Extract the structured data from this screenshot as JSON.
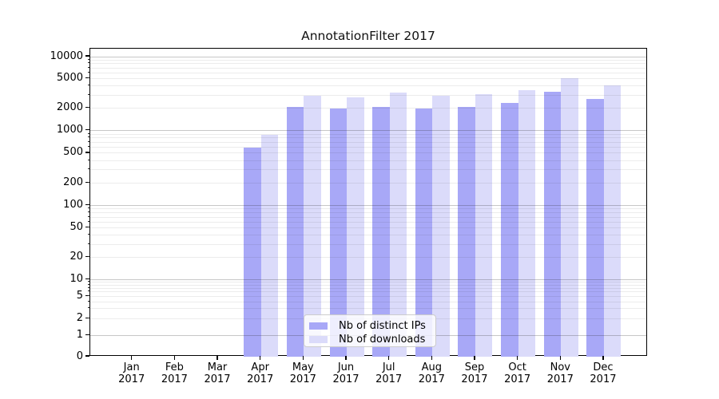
{
  "chart_data": {
    "type": "bar",
    "title": "AnnotationFilter 2017",
    "categories": [
      "Jan",
      "Feb",
      "Mar",
      "Apr",
      "May",
      "Jun",
      "Jul",
      "Aug",
      "Sep",
      "Oct",
      "Nov",
      "Dec"
    ],
    "year_label": "2017",
    "series": [
      {
        "name": "Nb of distinct IPs",
        "color": "#a8a8f7",
        "values": [
          0,
          0,
          0,
          600,
          2080,
          2010,
          2110,
          1980,
          2090,
          2390,
          3320,
          2660
        ]
      },
      {
        "name": "Nb of downloads",
        "color": "#dbdbfa",
        "values": [
          0,
          0,
          0,
          870,
          2930,
          2810,
          3240,
          2990,
          3080,
          3480,
          5170,
          4070
        ]
      }
    ],
    "yscale": "log_with_zero_baseline",
    "ylim": [
      0,
      10000
    ],
    "ytick_labels": [
      "0",
      "1",
      "2",
      "5",
      "10",
      "20",
      "50",
      "100",
      "200",
      "500",
      "1000",
      "2000",
      "5000",
      "10000"
    ],
    "yticks": [
      0,
      1,
      2,
      5,
      10,
      20,
      50,
      100,
      200,
      500,
      1000,
      2000,
      5000,
      10000
    ],
    "xlabel": "",
    "ylabel": "",
    "grid": true,
    "legend_position": "lower center"
  }
}
